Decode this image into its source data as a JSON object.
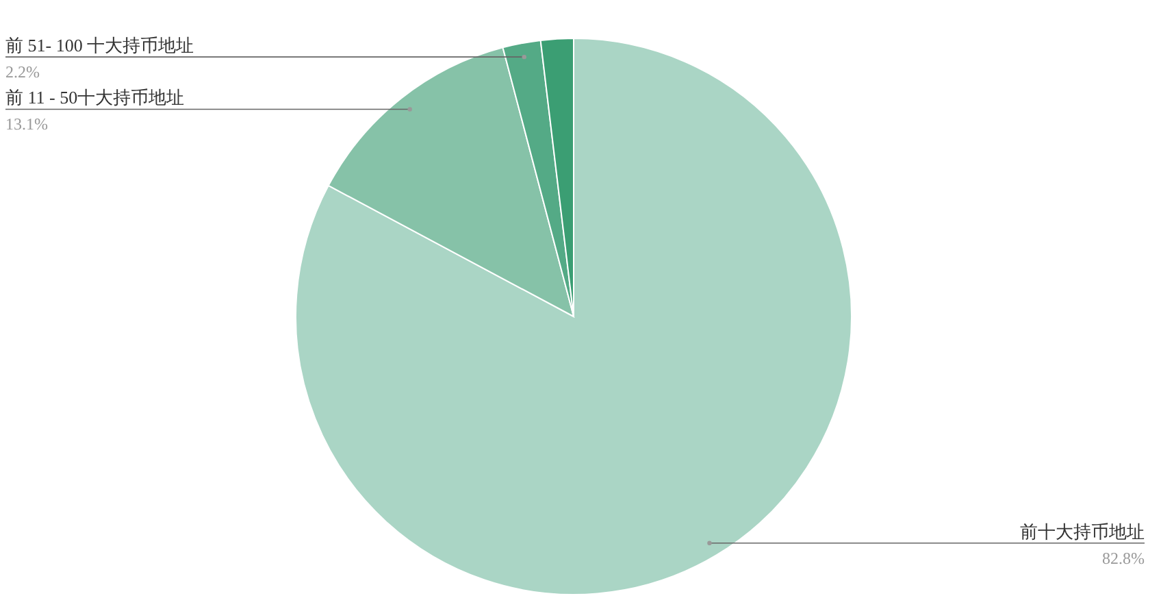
{
  "chart_data": {
    "type": "pie",
    "categories": [
      "前十大持币地址",
      "前 11 - 50十大持币地址",
      "前 51- 100 十大持币地址",
      null
    ],
    "values": [
      82.8,
      13.1,
      2.2,
      1.9
    ],
    "value_labels": [
      "82.8%",
      "13.1%",
      "2.2%",
      null
    ],
    "colors": [
      "#aad5c5",
      "#86c2a8",
      "#54aa86",
      "#3b9e73"
    ]
  }
}
